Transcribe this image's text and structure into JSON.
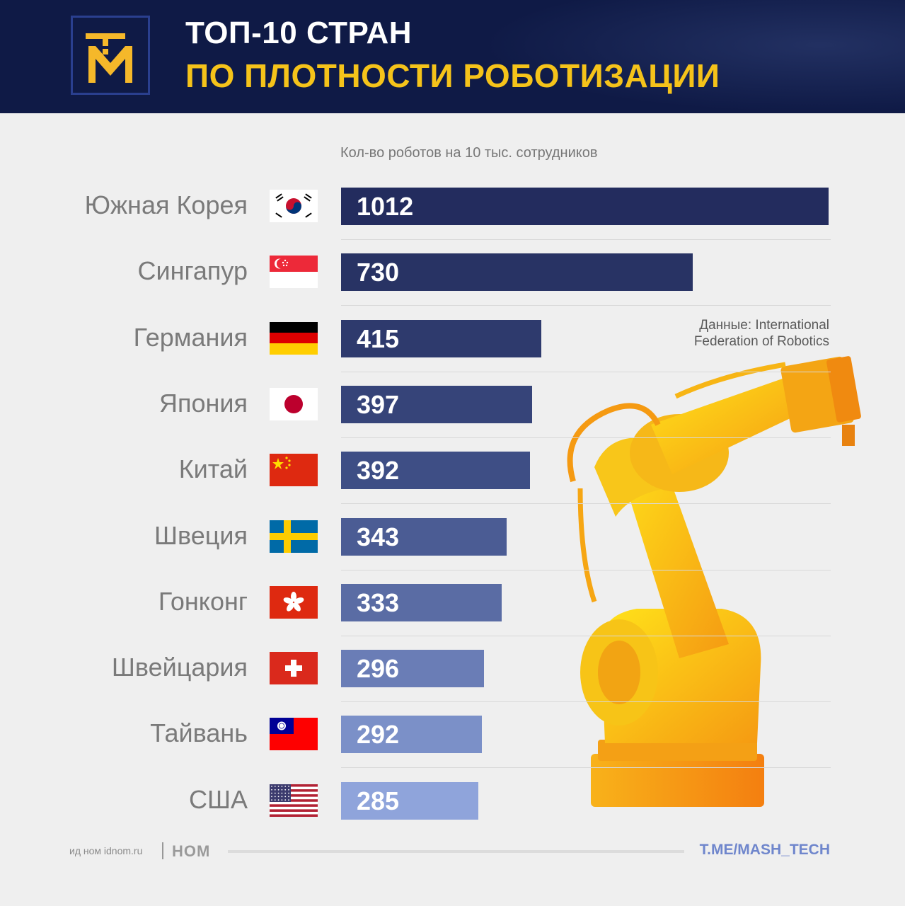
{
  "header": {
    "title_line1": "ТОП-10 СТРАН",
    "title_line2": "ПО ПЛОТНОСТИ РОБОТИЗАЦИИ",
    "logo_icon": "tm-logo-icon"
  },
  "chart_data": {
    "type": "bar",
    "orientation": "horizontal",
    "ylabel": "Кол-во роботов на 10 тыс. сотрудников",
    "categories": [
      "Южная Корея",
      "Сингапур",
      "Германия",
      "Япония",
      "Китай",
      "Швеция",
      "Гонконг",
      "Швейцария",
      "Тайвань",
      "США"
    ],
    "values": [
      1012,
      730,
      415,
      397,
      392,
      343,
      333,
      296,
      292,
      285
    ],
    "flags": [
      "south-korea-flag-icon",
      "singapore-flag-icon",
      "germany-flag-icon",
      "japan-flag-icon",
      "china-flag-icon",
      "sweden-flag-icon",
      "hong-kong-flag-icon",
      "switzerland-flag-icon",
      "taiwan-flag-icon",
      "usa-flag-icon"
    ],
    "bar_colors": [
      "#232c5e",
      "#283364",
      "#2e3a6d",
      "#364479",
      "#3e4e85",
      "#4b5c94",
      "#5a6ca4",
      "#6a7db6",
      "#7b90c8",
      "#8fa4db"
    ],
    "source_line1": "Данные: International",
    "source_line2": "Federation of Robotics",
    "grid": false
  },
  "footer": {
    "publisher_text": "ид ном idnom.ru",
    "brand": "НОМ",
    "link": "T.ME/MASH_TECH"
  },
  "colors": {
    "header_bg": "#0f1a46",
    "accent_yellow": "#f5c31a",
    "link_blue": "#6f86cc"
  }
}
